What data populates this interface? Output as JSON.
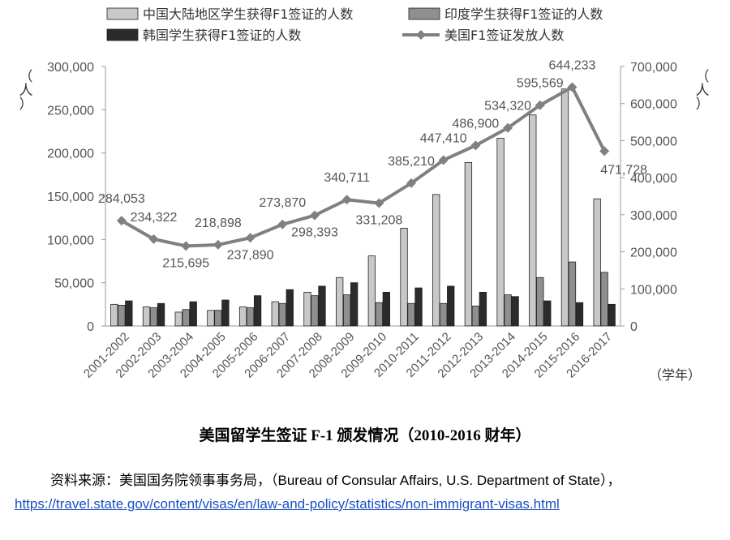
{
  "chart_data": {
    "type": "bar+line",
    "categories": [
      "2001-2002",
      "2002-2003",
      "2003-2004",
      "2004-2005",
      "2005-2006",
      "2006-2007",
      "2007-2008",
      "2008-2009",
      "2009-2010",
      "2010-2011",
      "2011-2012",
      "2012-2013",
      "2013-2014",
      "2014-2015",
      "2015-2016",
      "2016-2017"
    ],
    "series": [
      {
        "name": "中国大陆地区学生获得F1签证的人数",
        "kind": "bar",
        "axis": "left",
        "color": "#c8c8c8",
        "values": [
          25000,
          22000,
          16000,
          18000,
          22000,
          28000,
          39000,
          56000,
          81000,
          113000,
          152000,
          189000,
          217000,
          244000,
          274000,
          147000
        ]
      },
      {
        "name": "印度学生获得F1签证的人数",
        "kind": "bar",
        "axis": "left",
        "color": "#8f8f8f",
        "values": [
          24000,
          21000,
          19000,
          18000,
          21000,
          26000,
          35000,
          36000,
          27000,
          26000,
          26000,
          23000,
          36000,
          56000,
          74000,
          62000
        ]
      },
      {
        "name": "韩国学生获得F1签证的人数",
        "kind": "bar",
        "axis": "left",
        "color": "#2b2b2b",
        "values": [
          29000,
          26000,
          28000,
          30000,
          35000,
          42000,
          46000,
          50000,
          39000,
          44000,
          46000,
          39000,
          34000,
          29000,
          27000,
          25000
        ]
      },
      {
        "name": "美国F1签证发放人数",
        "kind": "line",
        "axis": "right",
        "color": "#808080",
        "values": [
          284053,
          234322,
          215695,
          218898,
          237890,
          273870,
          298393,
          340711,
          331208,
          385210,
          447410,
          486900,
          534320,
          595569,
          644233,
          471728
        ],
        "labels": [
          "284,053",
          "234,322",
          "215,695",
          "218,898",
          "237,890",
          "273,870",
          "298,393",
          "340,711",
          "331,208",
          "385,210",
          "447,410",
          "486,900",
          "534,320",
          "595,569",
          "644,233",
          "471,728"
        ]
      }
    ],
    "left_axis": {
      "range": [
        0,
        300000
      ],
      "ticks": [
        "0",
        "50,000",
        "100,000",
        "150,000",
        "200,000",
        "250,000",
        "300,000"
      ],
      "label": "（人）"
    },
    "right_axis": {
      "range": [
        0,
        700000
      ],
      "ticks": [
        "0",
        "100,000",
        "200,000",
        "300,000",
        "400,000",
        "500,000",
        "600,000",
        "700,000"
      ],
      "label": "（人）"
    },
    "x_axis": {
      "label": "（学年）"
    },
    "legend": "top",
    "grid": false,
    "title": "美国留学生签证 F-1 颁发情况（2010-2016 财年）"
  },
  "source": {
    "text": "资料来源：美国国务院领事事务局，（Bureau of Consular Affairs, U.S. Department of State），",
    "url": "https://travel.state.gov/content/visas/en/law-and-policy/statistics/non-immigrant-visas.html"
  }
}
